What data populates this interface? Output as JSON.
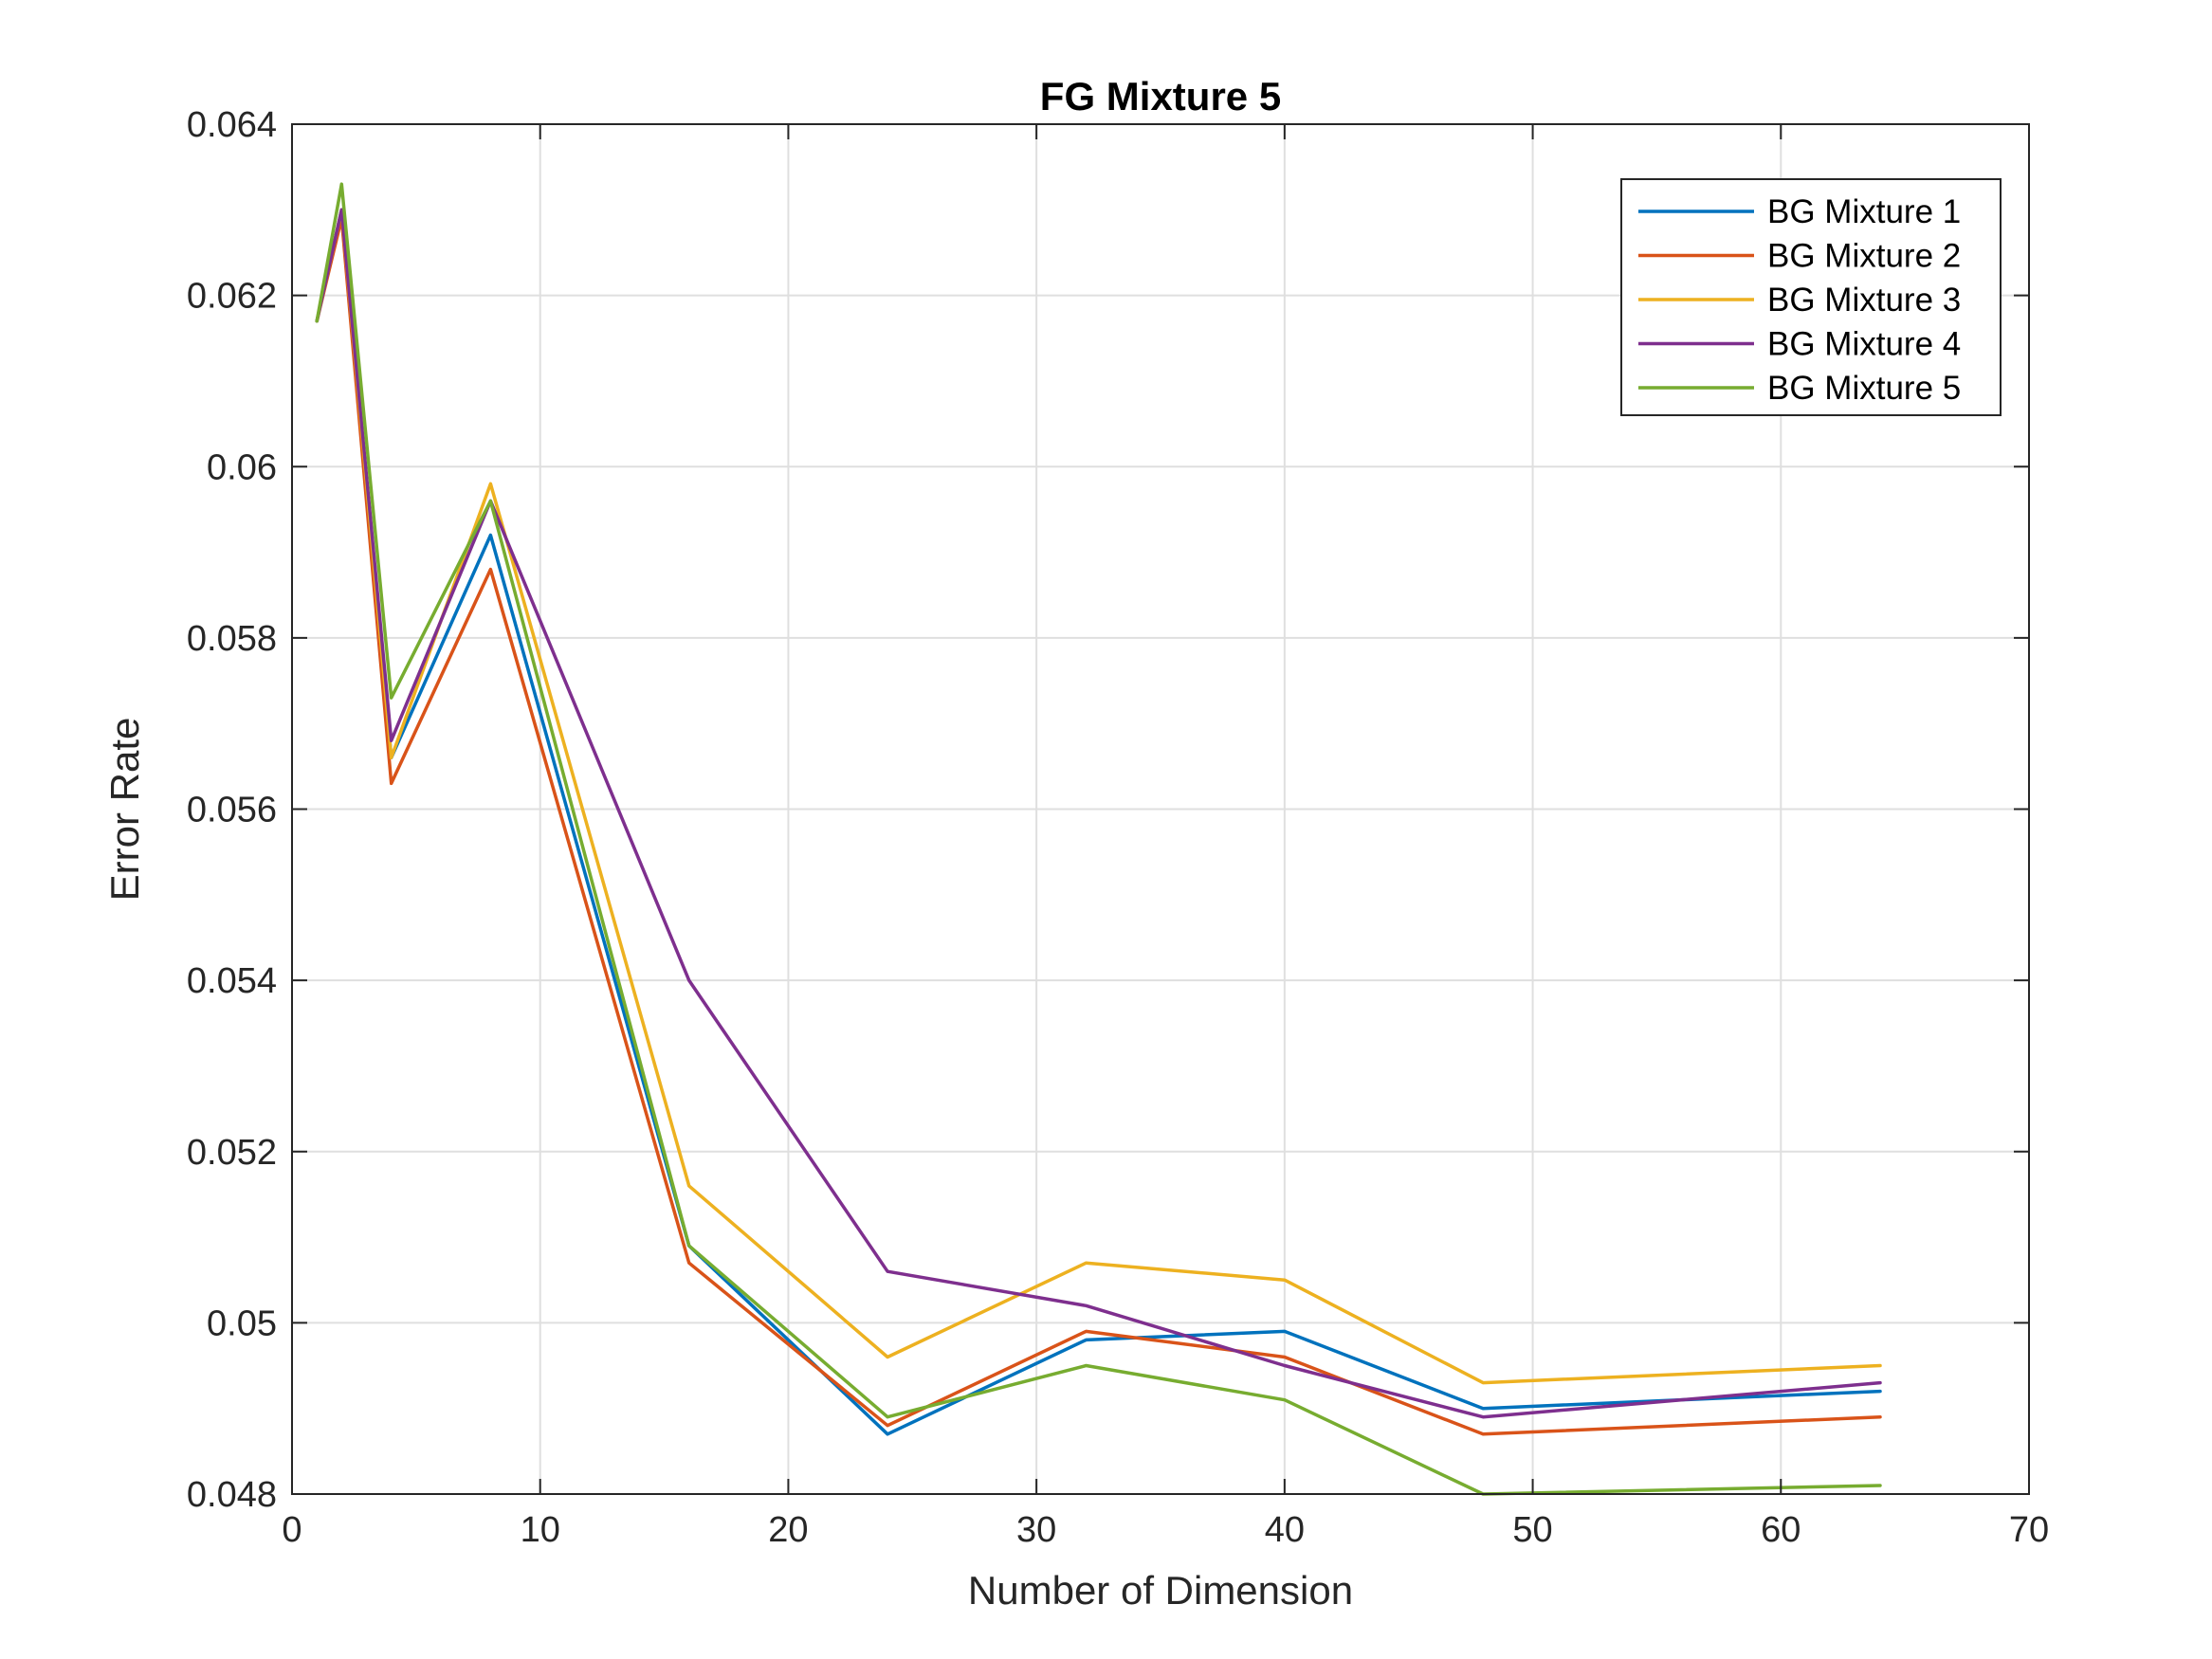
{
  "chart_data": {
    "type": "line",
    "title": "FG Mixture 5",
    "xlabel": "Number of Dimension",
    "ylabel": "Error Rate",
    "xlim": [
      0,
      70
    ],
    "ylim": [
      0.048,
      0.064
    ],
    "xticks": [
      0,
      10,
      20,
      30,
      40,
      50,
      60,
      70
    ],
    "xtick_labels": [
      "0",
      "10",
      "20",
      "30",
      "40",
      "50",
      "60",
      "70"
    ],
    "yticks": [
      0.048,
      0.05,
      0.052,
      0.054,
      0.056,
      0.058,
      0.06,
      0.062,
      0.064
    ],
    "ytick_labels": [
      "0.048",
      "0.05",
      "0.052",
      "0.054",
      "0.056",
      "0.058",
      "0.06",
      "0.062",
      "0.064"
    ],
    "grid": true,
    "legend_position": "top-right",
    "x": [
      1,
      2,
      4,
      8,
      16,
      24,
      32,
      40,
      48,
      64
    ],
    "series": [
      {
        "name": "BG Mixture 1",
        "color": "#0072BD",
        "values": [
          0.0617,
          0.063,
          0.0566,
          0.0592,
          0.0509,
          0.0487,
          0.0498,
          0.0499,
          0.049,
          0.0492
        ]
      },
      {
        "name": "BG Mixture 2",
        "color": "#D95319",
        "values": [
          0.0617,
          0.0629,
          0.0563,
          0.0588,
          0.0507,
          0.0488,
          0.0499,
          0.0496,
          0.0487,
          0.0489
        ]
      },
      {
        "name": "BG Mixture 3",
        "color": "#EDB120",
        "values": [
          0.0617,
          0.063,
          0.0566,
          0.0598,
          0.0516,
          0.0496,
          0.0507,
          0.0505,
          0.0493,
          0.0495
        ]
      },
      {
        "name": "BG Mixture 4",
        "color": "#7E2F8E",
        "values": [
          0.0617,
          0.063,
          0.0568,
          0.0596,
          0.054,
          0.0506,
          0.0502,
          0.0495,
          0.0489,
          0.0493
        ]
      },
      {
        "name": "BG Mixture 5",
        "color": "#77AC30",
        "values": [
          0.0617,
          0.0633,
          0.0573,
          0.0596,
          0.0509,
          0.0489,
          0.0495,
          0.0491,
          0.048,
          0.0481
        ]
      }
    ]
  }
}
